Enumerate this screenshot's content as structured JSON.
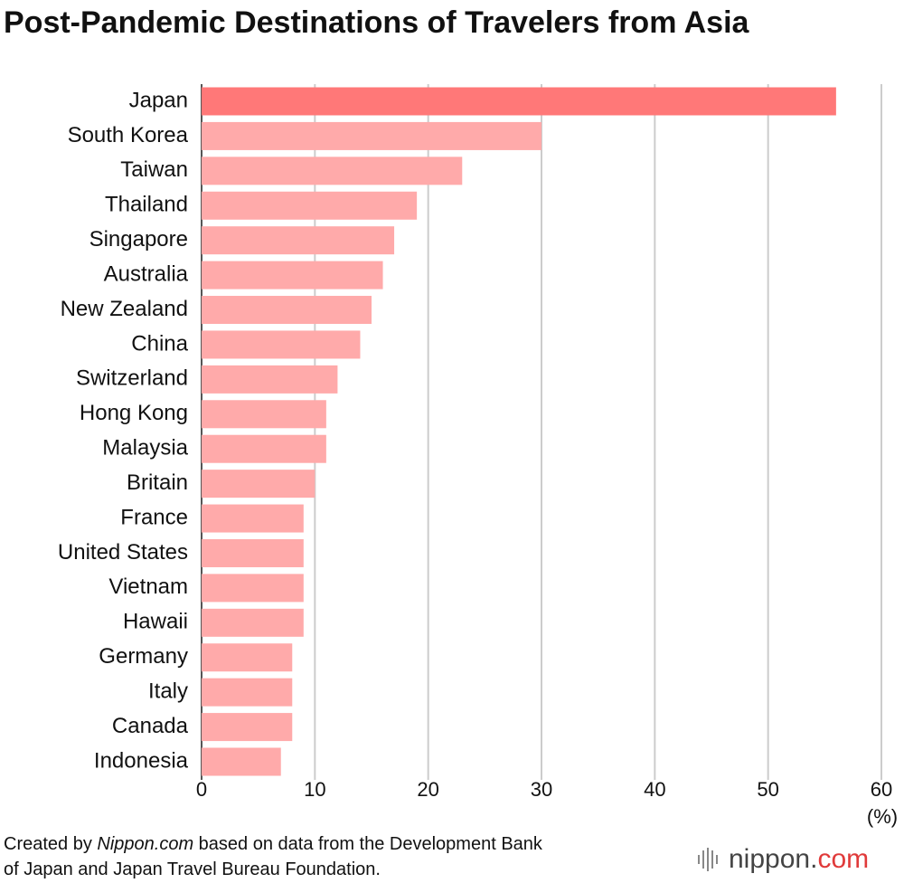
{
  "chart_data": {
    "type": "bar",
    "orientation": "horizontal",
    "title": "Post-Pandemic Destinations of Travelers from Asia",
    "categories": [
      "Japan",
      "South Korea",
      "Taiwan",
      "Thailand",
      "Singapore",
      "Australia",
      "New Zealand",
      "China",
      "Switzerland",
      "Hong Kong",
      "Malaysia",
      "Britain",
      "France",
      "United States",
      "Vietnam",
      "Hawaii",
      "Germany",
      "Italy",
      "Canada",
      "Indonesia"
    ],
    "values": [
      56,
      30,
      23,
      19,
      17,
      16,
      15,
      14,
      12,
      11,
      11,
      10,
      9,
      9,
      9,
      9,
      8,
      8,
      8,
      7
    ],
    "colors": [
      "#ff7878",
      "#ffaaaa",
      "#ffaaaa",
      "#ffaaaa",
      "#ffaaaa",
      "#ffaaaa",
      "#ffaaaa",
      "#ffaaaa",
      "#ffaaaa",
      "#ffaaaa",
      "#ffaaaa",
      "#ffaaaa",
      "#ffaaaa",
      "#ffaaaa",
      "#ffaaaa",
      "#ffaaaa",
      "#ffaaaa",
      "#ffaaaa",
      "#ffaaaa",
      "#ffaaaa"
    ],
    "xlim": [
      0,
      60
    ],
    "xticks": [
      0,
      10,
      20,
      30,
      40,
      50,
      60
    ],
    "x_unit": "(%)",
    "grid": true,
    "source": [
      [
        {
          "text": "Created by "
        },
        {
          "text": "Nippon.com",
          "italic": true
        },
        {
          "text": " based on data from the Development Bank"
        }
      ],
      [
        {
          "text": "of Japan and Japan Travel Bureau Foundation."
        }
      ]
    ],
    "logo": [
      {
        "text": "nippon.",
        "color": "#444444"
      },
      {
        "text": "com",
        "color": "#e03a3a"
      }
    ]
  }
}
